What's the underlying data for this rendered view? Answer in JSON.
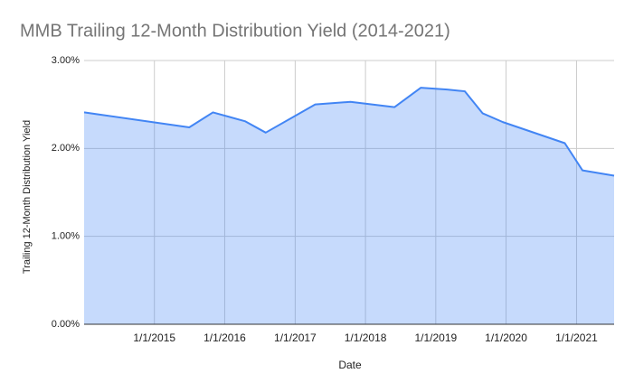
{
  "chart_data": {
    "type": "area",
    "title": "MMB Trailing 12-Month Distribution Yield (2014-2021)",
    "xlabel": "Date",
    "ylabel": "Trailing 12-Month Distribution Yield",
    "x": [
      "1/1/2014",
      "7/1/2015",
      "11/1/2015",
      "4/15/2016",
      "8/1/2016",
      "4/15/2017",
      "10/15/2017",
      "6/1/2018",
      "10/15/2018",
      "3/1/2019",
      "6/1/2019",
      "9/1/2019",
      "12/15/2019",
      "11/1/2020",
      "2/1/2021",
      "7/15/2021"
    ],
    "series": [
      {
        "name": "Trailing 12-Month Distribution Yield",
        "color": "#4285f4",
        "values": [
          2.41,
          2.24,
          2.41,
          2.31,
          2.18,
          2.5,
          2.53,
          2.47,
          2.69,
          2.67,
          2.65,
          2.4,
          2.3,
          2.06,
          1.75,
          1.69
        ]
      }
    ],
    "xlim": [
      "1/1/2014",
      "7/15/2021"
    ],
    "xticks": [
      "1/1/2015",
      "1/1/2016",
      "1/1/2017",
      "1/1/2018",
      "1/1/2019",
      "1/1/2020",
      "1/1/2021"
    ],
    "ylim": [
      0,
      3
    ],
    "yticks": [
      {
        "value": 0,
        "label": "0.00%"
      },
      {
        "value": 1,
        "label": "1.00%"
      },
      {
        "value": 2,
        "label": "2.00%"
      },
      {
        "value": 3,
        "label": "3.00%"
      }
    ],
    "grid": true
  }
}
